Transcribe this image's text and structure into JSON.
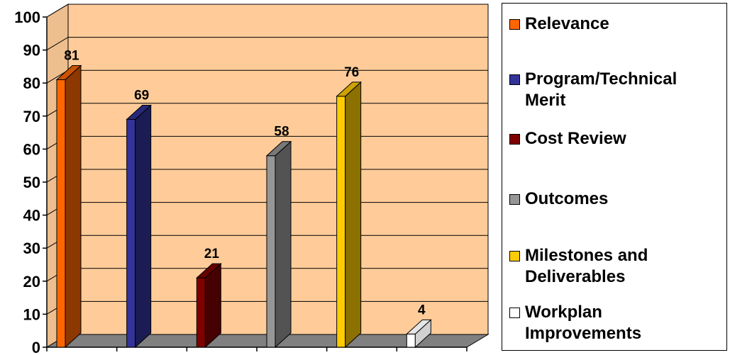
{
  "chart_data": {
    "type": "bar",
    "categories": [
      "Relevance",
      "Program/Technical Merit",
      "Cost Review",
      "Outcomes",
      "Milestones and Deliverables",
      "Workplan Improvements"
    ],
    "values": [
      81,
      69,
      21,
      58,
      76,
      4
    ],
    "data_labels": [
      "81",
      "69",
      "21",
      "58",
      "76",
      "4"
    ],
    "colors": [
      "#FF6600",
      "#333399",
      "#800000",
      "#969696",
      "#FFCC00",
      "#FFFFFF"
    ],
    "ylim": [
      0,
      100
    ],
    "yticks": [
      "0",
      "10",
      "20",
      "30",
      "40",
      "50",
      "60",
      "70",
      "80",
      "90",
      "100"
    ],
    "legend": {
      "position": "right",
      "entries": [
        {
          "label_lines": [
            "Relevance"
          ],
          "color": "#FF6600"
        },
        {
          "label_lines": [
            "Program/Technical",
            "Merit"
          ],
          "color": "#333399"
        },
        {
          "label_lines": [
            "Cost Review"
          ],
          "color": "#800000"
        },
        {
          "label_lines": [
            "Outcomes"
          ],
          "color": "#969696"
        },
        {
          "label_lines": [
            "Milestones and",
            "Deliverables"
          ],
          "color": "#FFCC00"
        },
        {
          "label_lines": [
            "Workplan",
            "Improvements"
          ],
          "color": "#FFFFFF"
        }
      ]
    },
    "plot_background": "#FFCC99",
    "floor_color": "#808080",
    "grid": true,
    "style": "3d-column"
  }
}
